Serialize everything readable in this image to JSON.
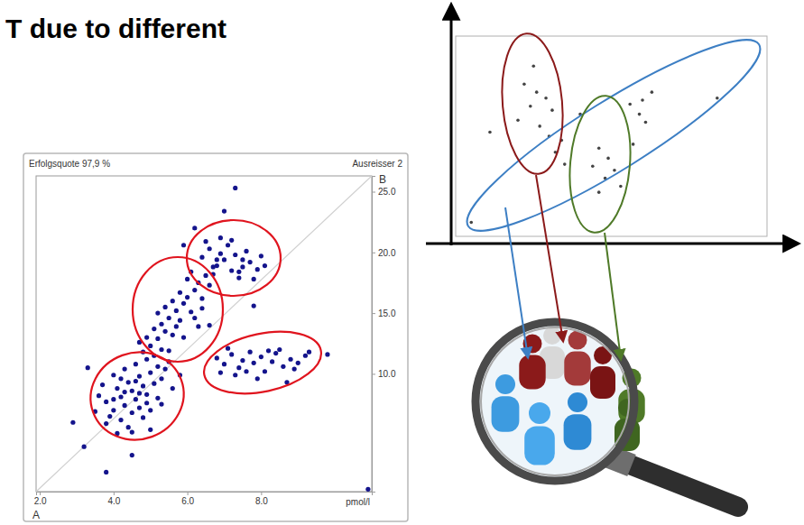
{
  "slide_title": "T due to different",
  "chart_data": [
    {
      "type": "scatter",
      "annotations": [
        "Erfolgsquote 97,9 %",
        "Ausreisser 2",
        "pmol/l"
      ],
      "xlabel": "A",
      "ylabel": "B",
      "xlim": [
        1.9,
        11.0
      ],
      "ylim": [
        0.3,
        26.3
      ],
      "xticks": [
        {
          "value": 2,
          "label": "2.0"
        },
        {
          "value": 4,
          "label": "4.0"
        },
        {
          "value": 6,
          "label": "6.0"
        },
        {
          "value": 8,
          "label": "8.0"
        }
      ],
      "yticks": [
        {
          "value": 10,
          "label": "10.0"
        },
        {
          "value": 15,
          "label": "15.0"
        },
        {
          "value": 20,
          "label": "20.0"
        },
        {
          "value": 25,
          "label": "25.0"
        }
      ],
      "color": "#14148c",
      "x": [
        4.2,
        4.5,
        4.8,
        4.3,
        4.6,
        4.9,
        5.1,
        4.0,
        4.4,
        4.7,
        5.0,
        4.1,
        3.8,
        3.9,
        4.2,
        4.5,
        4.7,
        5.2,
        5.3,
        5.4,
        3.6,
        3.7,
        4.0,
        4.3,
        4.6,
        4.9,
        5.1,
        5.5,
        4.8,
        5.0,
        4.4,
        4.1,
        3.8,
        5.3,
        5.6,
        4.6,
        4.3,
        4.9,
        4.0,
        4.7,
        4.2,
        5.2,
        3.5,
        5.8,
        4.5,
        4.8,
        5.0,
        5.2,
        5.4,
        5.3,
        5.5,
        5.6,
        5.7,
        5.8,
        5.9,
        6.0,
        6.1,
        6.2,
        6.3,
        6.4,
        6.5,
        6.6,
        5.1,
        4.9,
        5.6,
        5.8,
        6.0,
        5.4,
        6.2,
        6.7,
        5.3,
        5.7,
        6.1,
        5.9,
        5.5,
        6.4,
        4.7,
        6.8,
        5.2,
        6.3,
        6.4,
        6.6,
        6.8,
        7.0,
        7.2,
        7.3,
        7.5,
        7.7,
        7.9,
        7.1,
        6.9,
        7.4,
        7.6,
        8.0,
        6.7,
        7.8,
        7.2,
        6.5,
        7.5,
        8.1,
        6.9,
        7.4,
        6.8,
        7.0,
        7.2,
        7.4,
        7.5,
        7.7,
        7.8,
        8.0,
        8.1,
        8.3,
        8.4,
        8.6,
        8.8,
        9.0,
        9.2,
        7.3,
        7.9,
        8.5,
        7.1,
        7.6,
        8.2,
        8.9,
        9.3,
        6.9,
        8.7,
        7.3,
        7.0,
        3.2,
        3.8,
        4.5,
        10.9,
        9.8,
        3.3,
        6.2,
        5.9,
        6.6,
        5.0,
        2.9,
        7.8
      ],
      "values": [
        8.1,
        8.6,
        9.0,
        7.4,
        7.9,
        8.3,
        9.2,
        7.0,
        9.3,
        9.8,
        10.1,
        8.8,
        7.7,
        6.5,
        6.2,
        6.8,
        7.2,
        8.0,
        9.6,
        10.4,
        8.2,
        9.1,
        9.9,
        10.4,
        10.8,
        11.2,
        11.5,
        11.0,
        6.4,
        7.0,
        5.6,
        5.1,
        5.9,
        7.5,
        8.8,
        9.4,
        8.5,
        7.6,
        7.9,
        8.4,
        9.6,
        10.6,
        6.9,
        9.9,
        5.2,
        11.8,
        12.3,
        12.9,
        13.5,
        14.1,
        14.6,
        13.2,
        15.2,
        14.4,
        15.8,
        16.3,
        15.1,
        16.9,
        17.5,
        16.2,
        18.1,
        17.3,
        13.7,
        13.0,
        16.0,
        16.7,
        17.8,
        15.5,
        14.6,
        18.8,
        12.0,
        13.9,
        18.4,
        13.0,
        11.9,
        15.4,
        12.6,
        19.4,
        15.0,
        13.9,
        19.6,
        20.3,
        18.9,
        19.4,
        18.5,
        19.8,
        18.8,
        19.2,
        18.6,
        20.6,
        21.2,
        17.9,
        20.1,
        19.7,
        18.2,
        17.8,
        21.0,
        20.9,
        19.4,
        18.9,
        19.9,
        18.4,
        11.3,
        10.8,
        11.6,
        10.5,
        11.1,
        11.8,
        10.9,
        11.4,
        10.2,
        11.0,
        11.7,
        10.6,
        11.2,
        10.9,
        11.5,
        9.9,
        9.6,
        12.0,
        12.1,
        10.2,
        11.9,
        10.4,
        11.8,
        10.1,
        9.3,
        25.3,
        23.4,
        4.0,
        1.9,
        3.3,
        0.5,
        11.6,
        10.5,
        22.0,
        20.6,
        14.0,
        5.4,
        6.0,
        15.6
      ]
    },
    {
      "type": "scatter",
      "xlim": [
        0,
        10
      ],
      "ylim": [
        0,
        10
      ],
      "tick_labels": false,
      "color": "#444444",
      "x": [
        2.5,
        2.2,
        2.6,
        2.9,
        2.4,
        3.1,
        2.0,
        2.7,
        3.0,
        3.4,
        4.6,
        4.9,
        4.4,
        5.1,
        4.8,
        5.3,
        4.6,
        5.6,
        6.0,
        5.9,
        6.3,
        6.1,
        3.5,
        3.2,
        8.4,
        1.1,
        0.5,
        4.0,
        5.7
      ],
      "values": [
        8.5,
        7.6,
        7.2,
        6.9,
        6.5,
        6.3,
        5.8,
        5.5,
        5.0,
        4.8,
        4.4,
        3.9,
        3.5,
        3.3,
        2.9,
        2.5,
        2.2,
        6.6,
        6.8,
        6.1,
        7.2,
        5.7,
        3.6,
        4.2,
        6.9,
        5.2,
        0.7,
        6.1,
        4.6
      ]
    }
  ]
}
